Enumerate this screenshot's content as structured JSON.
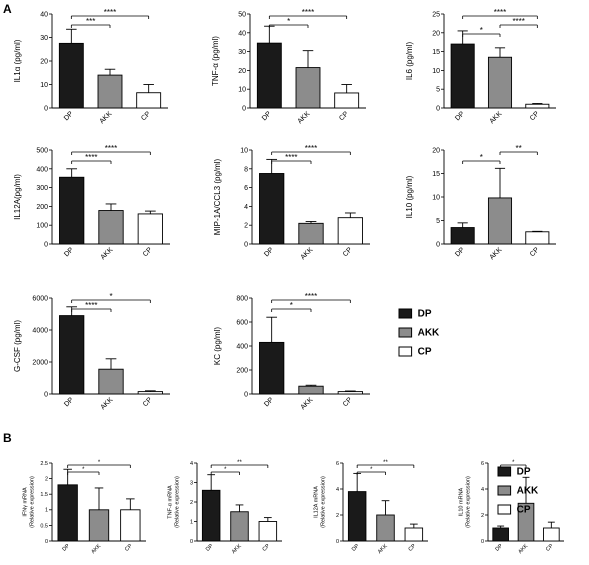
{
  "panel_labels": [
    "A",
    "B"
  ],
  "legend_A": [
    "DP",
    "AKK",
    "CP"
  ],
  "legend_B": [
    "DP",
    "AKK",
    "CP"
  ],
  "colors": {
    "DP": "#1a1a1a",
    "AKK": "#8c8c8c",
    "CP": "#ffffff"
  },
  "chart_data": [
    {
      "type": "bar",
      "ylabel": "IL1α (pg/ml)",
      "categories": [
        "DP",
        "AKK",
        "CP"
      ],
      "values": [
        27.5,
        14,
        6.5
      ],
      "errors": [
        6,
        2.5,
        3.5
      ],
      "ylim": [
        0,
        40
      ],
      "yticks": [
        0,
        10,
        20,
        30,
        40
      ],
      "significance": [
        {
          "from": 0,
          "to": 1,
          "label": "***"
        },
        {
          "from": 0,
          "to": 2,
          "label": "****"
        }
      ]
    },
    {
      "type": "bar",
      "ylabel": "TNF-α (pg/ml)",
      "categories": [
        "DP",
        "AKK",
        "CP"
      ],
      "values": [
        34.5,
        21.5,
        8
      ],
      "errors": [
        9,
        9,
        4.5
      ],
      "ylim": [
        0,
        50
      ],
      "yticks": [
        0,
        10,
        20,
        30,
        40,
        50
      ],
      "significance": [
        {
          "from": 0,
          "to": 1,
          "label": "*"
        },
        {
          "from": 0,
          "to": 2,
          "label": "****"
        }
      ]
    },
    {
      "type": "bar",
      "ylabel": "IL6 (pg/ml)",
      "categories": [
        "DP",
        "AKK",
        "CP"
      ],
      "values": [
        17,
        13.5,
        1
      ],
      "errors": [
        3.5,
        2.5,
        0.2
      ],
      "ylim": [
        0,
        25
      ],
      "yticks": [
        0,
        5,
        10,
        15,
        20,
        25
      ],
      "significance": [
        {
          "from": 0,
          "to": 1,
          "label": "*"
        },
        {
          "from": 1,
          "to": 2,
          "label": "****"
        },
        {
          "from": 0,
          "to": 2,
          "label": "****"
        }
      ]
    },
    {
      "type": "bar",
      "ylabel": "IL12A(pg/ml)",
      "categories": [
        "DP",
        "AKK",
        "CP"
      ],
      "values": [
        355,
        178,
        160
      ],
      "errors": [
        45,
        35,
        15
      ],
      "ylim": [
        0,
        500
      ],
      "yticks": [
        0,
        100,
        200,
        300,
        400,
        500
      ],
      "significance": [
        {
          "from": 0,
          "to": 1,
          "label": "****"
        },
        {
          "from": 0,
          "to": 2,
          "label": "****"
        }
      ]
    },
    {
      "type": "bar",
      "ylabel": "MIP-1A/CCL3 (pg/ml)",
      "categories": [
        "DP",
        "AKK",
        "CP"
      ],
      "values": [
        7.5,
        2.2,
        2.8
      ],
      "errors": [
        1.5,
        0.2,
        0.5
      ],
      "ylim": [
        0,
        10
      ],
      "yticks": [
        0,
        2,
        4,
        6,
        8,
        10
      ],
      "significance": [
        {
          "from": 0,
          "to": 1,
          "label": "****"
        },
        {
          "from": 0,
          "to": 2,
          "label": "****"
        }
      ]
    },
    {
      "type": "bar",
      "ylabel": "IL10 (pg/ml)",
      "categories": [
        "DP",
        "AKK",
        "CP"
      ],
      "values": [
        3.5,
        9.8,
        2.6
      ],
      "errors": [
        1.0,
        6.3,
        0.1
      ],
      "ylim": [
        0,
        20
      ],
      "yticks": [
        0,
        5,
        10,
        15,
        20
      ],
      "significance": [
        {
          "from": 0,
          "to": 1,
          "label": "*"
        },
        {
          "from": 1,
          "to": 2,
          "label": "**"
        }
      ]
    },
    {
      "type": "bar",
      "ylabel": "G-CSF (pg/ml)",
      "categories": [
        "DP",
        "AKK",
        "CP"
      ],
      "values": [
        4900,
        1550,
        150
      ],
      "errors": [
        550,
        650,
        50
      ],
      "ylim": [
        0,
        6000
      ],
      "yticks": [
        0,
        2000,
        4000,
        6000
      ],
      "significance": [
        {
          "from": 0,
          "to": 1,
          "label": "****"
        },
        {
          "from": 0,
          "to": 2,
          "label": "*"
        }
      ]
    },
    {
      "type": "bar",
      "ylabel": "KC (pg/ml)",
      "categories": [
        "DP",
        "AKK",
        "CP"
      ],
      "values": [
        430,
        65,
        20
      ],
      "errors": [
        210,
        8,
        5
      ],
      "ylim": [
        0,
        800
      ],
      "yticks": [
        0,
        200,
        400,
        600,
        800
      ],
      "significance": [
        {
          "from": 0,
          "to": 1,
          "label": "*"
        },
        {
          "from": 0,
          "to": 2,
          "label": "****"
        }
      ]
    },
    {
      "type": "bar",
      "ylabel": "IFNγ mRNA\n(Relative expression)",
      "categories": [
        "DP",
        "AKK",
        "CP"
      ],
      "values": [
        1.8,
        1.0,
        1.0
      ],
      "errors": [
        0.5,
        0.7,
        0.35
      ],
      "ylim": [
        0,
        2.5
      ],
      "yticks": [
        0,
        0.5,
        1.0,
        1.5,
        2.0,
        2.5
      ],
      "significance": [
        {
          "from": 0,
          "to": 1,
          "label": "*"
        },
        {
          "from": 0,
          "to": 2,
          "label": "*"
        }
      ]
    },
    {
      "type": "bar",
      "ylabel": "TNF-α mRNA\n(Relative expression)",
      "categories": [
        "DP",
        "AKK",
        "CP"
      ],
      "values": [
        2.6,
        1.5,
        1.0
      ],
      "errors": [
        0.8,
        0.35,
        0.2
      ],
      "ylim": [
        0,
        4
      ],
      "yticks": [
        0,
        1,
        2,
        3,
        4
      ],
      "significance": [
        {
          "from": 0,
          "to": 1,
          "label": "*"
        },
        {
          "from": 0,
          "to": 2,
          "label": "**"
        }
      ]
    },
    {
      "type": "bar",
      "ylabel": "IL12A mRNA\n(Relative expression)",
      "categories": [
        "DP",
        "AKK",
        "CP"
      ],
      "values": [
        3.8,
        2.0,
        1.0
      ],
      "errors": [
        1.4,
        1.1,
        0.3
      ],
      "ylim": [
        0,
        6
      ],
      "yticks": [
        0,
        2,
        4,
        6
      ],
      "significance": [
        {
          "from": 0,
          "to": 1,
          "label": "*"
        },
        {
          "from": 0,
          "to": 2,
          "label": "**"
        }
      ]
    },
    {
      "type": "bar",
      "ylabel": "IL10 mRNA\n(Relative expression)",
      "categories": [
        "DP",
        "AKK",
        "CP"
      ],
      "values": [
        1.0,
        2.9,
        1.0
      ],
      "errors": [
        0.15,
        2.0,
        0.45
      ],
      "ylim": [
        0,
        6
      ],
      "yticks": [
        0,
        2,
        4,
        6
      ],
      "significance": [
        {
          "from": 0,
          "to": 1,
          "label": "*"
        }
      ]
    }
  ]
}
